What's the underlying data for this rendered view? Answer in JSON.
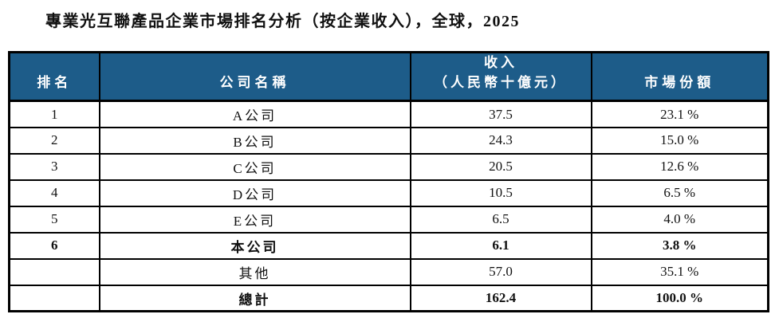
{
  "page": {
    "title": "專業光互聯產品企業市場排名分析（按企業收入），全球，2025"
  },
  "table": {
    "headers": {
      "rank": "排名",
      "company": "公司名稱",
      "revenue_line1": "收入",
      "revenue_line2": "（人民幣十億元）",
      "share": "市場份額"
    },
    "rows": [
      {
        "rank": "1",
        "company": "A公司",
        "revenue": "37.5",
        "share": "23.1 %"
      },
      {
        "rank": "2",
        "company": "B公司",
        "revenue": "24.3",
        "share": "15.0 %"
      },
      {
        "rank": "3",
        "company": "C公司",
        "revenue": "20.5",
        "share": "12.6 %"
      },
      {
        "rank": "4",
        "company": "D公司",
        "revenue": "10.5",
        "share": "6.5 %"
      },
      {
        "rank": "5",
        "company": "E公司",
        "revenue": "6.5",
        "share": "4.0 %"
      },
      {
        "rank": "6",
        "company": "本公司",
        "revenue": "6.1",
        "share": "3.8 %"
      },
      {
        "rank": "",
        "company": "其他",
        "revenue": "57.0",
        "share": "35.1 %"
      },
      {
        "rank": "",
        "company": "總計",
        "revenue": "162.4",
        "share": "100.0 %"
      }
    ]
  },
  "colors": {
    "header_bg": "#1d5c89",
    "header_text": "#ffffff",
    "border": "#000000",
    "body_text": "#111111"
  }
}
